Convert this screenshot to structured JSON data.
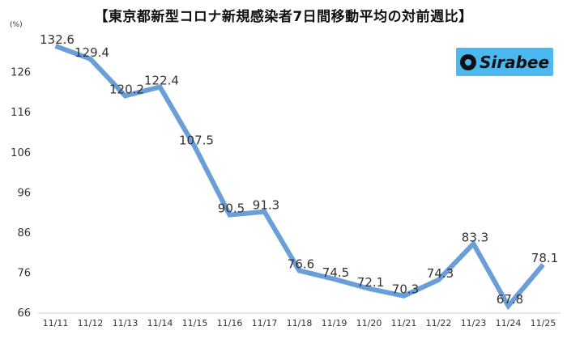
{
  "chart_data": {
    "type": "line",
    "title": "【東京都新型コロナ新規感染者7日間移動平均の対前週比】",
    "unit": "(%)",
    "categories": [
      "11/11",
      "11/12",
      "11/13",
      "11/14",
      "11/15",
      "11/16",
      "11/17",
      "11/18",
      "11/19",
      "11/20",
      "11/21",
      "11/22",
      "11/23",
      "11/24",
      "11/25"
    ],
    "values": [
      132.6,
      129.4,
      120.2,
      122.4,
      107.5,
      90.5,
      91.3,
      76.6,
      74.5,
      72.1,
      70.3,
      74.3,
      83.3,
      67.8,
      78.1
    ],
    "data_labels": [
      "132.6",
      "129.4",
      "120.2",
      "122.4",
      "107.5",
      "90.5",
      "91.3",
      "76.6",
      "74.5",
      "72.1",
      "70.3",
      "74.3",
      "83.3",
      "67.8",
      "78.1"
    ],
    "yticks": [
      66,
      76,
      86,
      96,
      106,
      116,
      126
    ],
    "ylim": [
      66,
      134
    ],
    "grid": false,
    "line_color": "#6a9ed8"
  },
  "logo": {
    "text": "Sirabee",
    "icon": "sirabee-logo-icon",
    "bg_color": "#4db8f0"
  }
}
